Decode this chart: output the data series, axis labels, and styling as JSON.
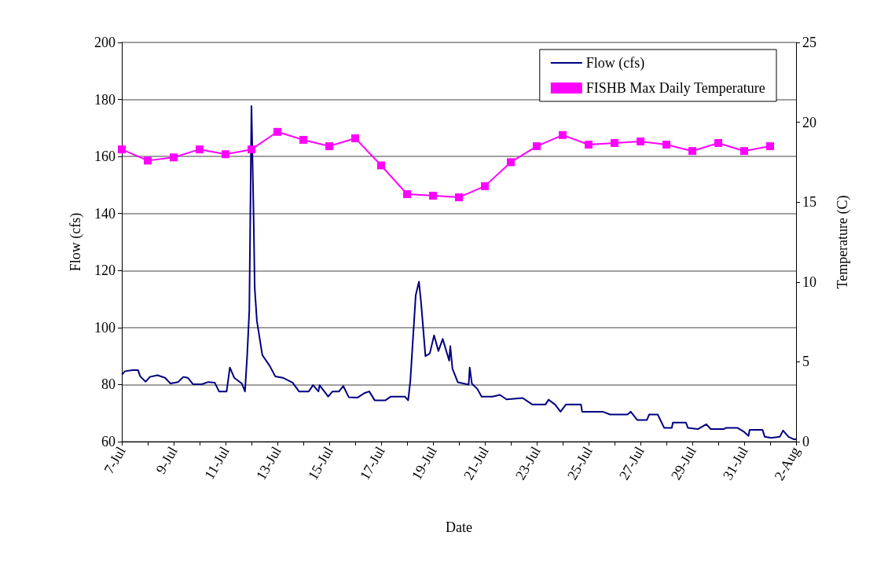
{
  "chart_data": {
    "type": "line",
    "xlabel": "Date",
    "ylabel": "Flow (cfs)",
    "y2label": "Temperature (C)",
    "xlim": [
      "--07-07",
      "--08-02"
    ],
    "xticks": [
      {
        "value": "--07-07",
        "label": "7-Jul"
      },
      {
        "value": "--07-08",
        "label": null
      },
      {
        "value": "--07-09",
        "label": "9-Jul"
      },
      {
        "value": "--07-10",
        "label": null
      },
      {
        "value": "--07-11",
        "label": "11-Jul"
      },
      {
        "value": "--07-12",
        "label": null
      },
      {
        "value": "--07-13",
        "label": "13-Jul"
      },
      {
        "value": "--07-14",
        "label": null
      },
      {
        "value": "--07-15",
        "label": "15-Jul"
      },
      {
        "value": "--07-16",
        "label": null
      },
      {
        "value": "--07-17",
        "label": "17-Jul"
      },
      {
        "value": "--07-18",
        "label": null
      },
      {
        "value": "--07-19",
        "label": "19-Jul"
      },
      {
        "value": "--07-20",
        "label": null
      },
      {
        "value": "--07-21",
        "label": "21-Jul"
      },
      {
        "value": "--07-22",
        "label": null
      },
      {
        "value": "--07-23",
        "label": "23-Jul"
      },
      {
        "value": "--07-24",
        "label": null
      },
      {
        "value": "--07-25",
        "label": "25-Jul"
      },
      {
        "value": "--07-26",
        "label": null
      },
      {
        "value": "--07-27",
        "label": "27-Jul"
      },
      {
        "value": "--07-28",
        "label": null
      },
      {
        "value": "--07-29",
        "label": "29-Jul"
      },
      {
        "value": "--07-30",
        "label": null
      },
      {
        "value": "--07-31",
        "label": "31-Jul"
      },
      {
        "value": "--08-01",
        "label": null
      },
      {
        "value": "--08-02",
        "label": "2-Aug"
      }
    ],
    "ylim": [
      60,
      200
    ],
    "yticks": [
      60,
      80,
      100,
      120,
      140,
      160,
      180,
      200
    ],
    "y2lim": [
      0,
      25
    ],
    "y2ticks": [
      0,
      5,
      10,
      15,
      20,
      25
    ],
    "grid": "y",
    "legend": "top right",
    "series": [
      {
        "name": "Flow (cfs)",
        "color": "#000080",
        "marker": "none",
        "x": [
          "--07-07T00:00",
          "--07-07T03:00",
          "--07-07T10:00",
          "--07-07T15:00",
          "--07-07T17:00",
          "--07-07T22:00",
          "--07-08T02:00",
          "--07-08T09:00",
          "--07-08T16:00",
          "--07-08T21:00",
          "--07-09T04:00",
          "--07-09T09:00",
          "--07-09T13:00",
          "--07-09T18:00",
          "--07-10T02:00",
          "--07-10T08:00",
          "--07-10T14:00",
          "--07-10T18:00",
          "--07-11T01:00",
          "--07-11T04:00",
          "--07-11T08:00",
          "--07-11T15:00",
          "--07-11T18:00",
          "--07-11T20:00",
          "--07-11T22:00",
          "--07-12T00:00",
          "--07-12T02:00",
          "--07-12T03:00",
          "--07-12T05:00",
          "--07-12T10:00",
          "--07-12T17:00",
          "--07-12T22:00",
          "--07-13T05:00",
          "--07-13T14:00",
          "--07-13T20:00",
          "--07-14T05:00",
          "--07-14T09:00",
          "--07-14T14:00",
          "--07-14T15:00",
          "--07-14T23:00",
          "--07-15T03:00",
          "--07-15T09:00",
          "--07-15T13:00",
          "--07-15T18:00",
          "--07-16T02:00",
          "--07-16T09:00",
          "--07-16T13:00",
          "--07-16T18:00",
          "--07-17T04:00",
          "--07-17T09:00",
          "--07-17T22:00",
          "--07-18T01:00",
          "--07-18T03:00",
          "--07-18T08:00",
          "--07-18T11:00",
          "--07-18T13:00",
          "--07-18T17:00",
          "--07-18T21:00",
          "--07-19T01:00",
          "--07-19T05:00",
          "--07-19T09:00",
          "--07-19T15:00",
          "--07-19T16:00",
          "--07-19T18:00",
          "--07-19T23:00",
          "--07-20T09:00",
          "--07-20T10:00",
          "--07-20T12:00",
          "--07-20T17:00",
          "--07-20T21:00",
          "--07-21T07:00",
          "--07-21T14:00",
          "--07-21T20:00",
          "--07-22T11:00",
          "--07-22T20:00",
          "--07-23T08:00",
          "--07-23T11:00",
          "--07-23T17:00",
          "--07-23T22:00",
          "--07-24T03:00",
          "--07-24T17:00",
          "--07-24T18:00",
          "--07-25T13:00",
          "--07-25T20:00",
          "--07-26T12:00",
          "--07-26T15:00",
          "--07-26T21:00",
          "--07-27T06:00",
          "--07-27T08:00",
          "--07-27T16:00",
          "--07-27T22:00",
          "--07-28T05:00",
          "--07-28T06:00",
          "--07-28T18:00",
          "--07-28T20:00",
          "--07-29T05:00",
          "--07-29T13:00",
          "--07-29T17:00",
          "--07-30T05:00",
          "--07-30T07:00",
          "--07-30T18:00",
          "--07-31T00:00",
          "--07-31T04:00",
          "--07-31T05:00",
          "--07-31T17:00",
          "--07-31T19:00",
          "--08-01T01:00",
          "--08-01T09:00",
          "--08-01T12:00",
          "--08-01T17:00",
          "--08-01T22:00",
          "--08-02T00:00"
        ],
        "values": [
          83.5,
          84.7,
          85.1,
          85.1,
          82.9,
          81,
          82.7,
          83.3,
          82.4,
          80.4,
          80.9,
          82.7,
          82.4,
          80.1,
          80.1,
          80.9,
          80.7,
          77.6,
          77.6,
          86,
          82.4,
          80.4,
          77.6,
          90,
          106,
          177.7,
          138.7,
          113.9,
          102.4,
          90.4,
          86.5,
          82.9,
          82.4,
          80.7,
          77.6,
          77.6,
          79.8,
          77.6,
          79.8,
          75.8,
          77.6,
          77.6,
          79.5,
          75.6,
          75.4,
          77.1,
          77.6,
          74.5,
          74.5,
          75.8,
          75.8,
          74.5,
          81.2,
          111.3,
          116.1,
          108.6,
          90,
          90.9,
          97.3,
          91.8,
          96,
          88.4,
          93.5,
          85.6,
          80.8,
          80,
          86,
          80.3,
          78.5,
          75.8,
          75.8,
          76.4,
          74.8,
          75.3,
          73,
          73,
          74.7,
          73,
          70.5,
          73,
          73,
          70.5,
          70.5,
          69.5,
          69.5,
          70.5,
          67.6,
          67.6,
          69.5,
          69.5,
          64.8,
          64.8,
          66.7,
          66.7,
          64.8,
          64.4,
          66.1,
          64.4,
          64.4,
          64.8,
          64.8,
          63.4,
          62,
          64.1,
          64.1,
          61.7,
          61.3,
          61.7,
          63.9,
          61.7,
          60.8,
          60.8
        ]
      },
      {
        "name": "FISHB Max Daily Temperature",
        "color": "#ff00ff",
        "marker": "square",
        "axis": "y2",
        "x": [
          "--07-07",
          "--07-08",
          "--07-09",
          "--07-10",
          "--07-11",
          "--07-12",
          "--07-13",
          "--07-14",
          "--07-15",
          "--07-16",
          "--07-17",
          "--07-18",
          "--07-19",
          "--07-20",
          "--07-21",
          "--07-22",
          "--07-23",
          "--07-24",
          "--07-25",
          "--07-26",
          "--07-27",
          "--07-28",
          "--07-29",
          "--07-30",
          "--07-31",
          "--08-01"
        ],
        "values": [
          18.3,
          17.6,
          17.8,
          18.3,
          18,
          18.3,
          19.4,
          18.9,
          18.5,
          19,
          17.3,
          15.5,
          15.4,
          15.3,
          16,
          17.5,
          18.5,
          19.2,
          18.6,
          18.7,
          18.8,
          18.6,
          18.2,
          18.7,
          18.2,
          18.5
        ]
      }
    ]
  }
}
